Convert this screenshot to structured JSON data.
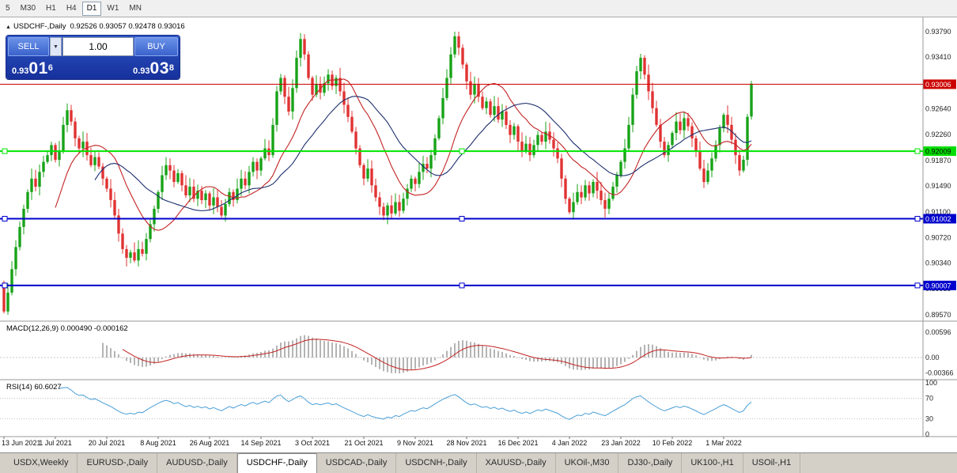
{
  "window": {
    "toolbar_timeframes": [
      "5",
      "M30",
      "H1",
      "H4",
      "D1",
      "W1",
      "MN"
    ],
    "active_timeframe": "D1"
  },
  "chart": {
    "symbol_label": "USDCHF-,Daily",
    "ohlc_values": "0.92526 0.93057 0.92478 0.93016",
    "collapse_icon": "▲"
  },
  "trade_panel": {
    "sell_label": "SELL",
    "buy_label": "BUY",
    "volume": "1.00",
    "dropdown_icon": "▼",
    "sell_price": {
      "prefix": "0.93",
      "big": "01",
      "sup": "6"
    },
    "buy_price": {
      "prefix": "0.93",
      "big": "03",
      "sup": "8"
    }
  },
  "price_axis": {
    "ticks": [
      "0.93790",
      "0.93410",
      "0.92640",
      "0.92260",
      "0.91870",
      "0.91490",
      "0.91100",
      "0.90720",
      "0.90340",
      "0.89959",
      "0.89570"
    ],
    "badges": [
      {
        "value": "0.93006",
        "price": 0.93006,
        "color": "#cc0000",
        "text_color": "#ffffff"
      },
      {
        "value": "0.92009",
        "price": 0.92009,
        "color": "#00dd00",
        "text_color": "#000000"
      },
      {
        "value": "0.91002",
        "price": 0.91002,
        "color": "#0000cc",
        "text_color": "#ffffff"
      },
      {
        "value": "0.90007",
        "price": 0.90007,
        "color": "#0000cc",
        "text_color": "#ffffff"
      }
    ]
  },
  "hlines": [
    {
      "price": 0.93006,
      "color": "#cc0000",
      "width": 1,
      "handles": false
    },
    {
      "price": 0.92009,
      "color": "#00e400",
      "width": 2,
      "handles": true
    },
    {
      "price": 0.91002,
      "color": "#0000cc",
      "width": 2,
      "handles": true
    },
    {
      "price": 0.90007,
      "color": "#0000cc",
      "width": 2,
      "handles": true
    }
  ],
  "macd": {
    "label": "MACD(12,26,9) 0.000490 -0.000162",
    "axis": [
      "0.00596",
      "0.00",
      "-0.00366"
    ],
    "fast": 12,
    "slow": 26,
    "signal": 9
  },
  "rsi": {
    "label": "RSI(14) 60.6027",
    "axis": [
      "100",
      "70",
      "30",
      "0"
    ],
    "period": 14,
    "levels": [
      70,
      30
    ]
  },
  "date_axis": [
    "13 Jun 2021",
    "1 Jul 2021",
    "20 Jul 2021",
    "8 Aug 2021",
    "26 Aug 2021",
    "14 Sep 2021",
    "3 Oct 2021",
    "21 Oct 2021",
    "9 Nov 2021",
    "28 Nov 2021",
    "16 Dec 2021",
    "4 Jan 2022",
    "23 Jan 2022",
    "10 Feb 2022",
    "1 Mar 2022"
  ],
  "tabs": {
    "items": [
      "USDX,Weekly",
      "EURUSD-,Daily",
      "AUDUSD-,Daily",
      "USDCHF-,Daily",
      "USDCAD-,Daily",
      "USDCNH-,Daily",
      "XAUUSD-,Daily",
      "UKOil-,M30",
      "DJ30-,Daily",
      "UK100-,H1",
      "USOil-,H1"
    ],
    "active": "USDCHF-,Daily"
  },
  "chart_data": {
    "type": "candlestick",
    "symbol": "USDCHF",
    "timeframe": "Daily",
    "price_range": [
      0.8957,
      0.9379
    ],
    "first_open": 0.9005,
    "closes": [
      0.8962,
      0.899,
      0.9025,
      0.9058,
      0.9088,
      0.9115,
      0.914,
      0.916,
      0.9148,
      0.917,
      0.9185,
      0.9195,
      0.921,
      0.9188,
      0.9202,
      0.924,
      0.9262,
      0.9245,
      0.922,
      0.9205,
      0.9215,
      0.9195,
      0.918,
      0.9192,
      0.9178,
      0.916,
      0.9145,
      0.9128,
      0.9105,
      0.9078,
      0.9055,
      0.9042,
      0.905,
      0.9038,
      0.9055,
      0.9048,
      0.907,
      0.9092,
      0.9115,
      0.914,
      0.9165,
      0.918,
      0.9172,
      0.9155,
      0.9168,
      0.915,
      0.9135,
      0.9148,
      0.913,
      0.9142,
      0.9128,
      0.9138,
      0.912,
      0.9132,
      0.9118,
      0.9105,
      0.9122,
      0.914,
      0.9128,
      0.9145,
      0.916,
      0.915,
      0.917,
      0.9185,
      0.9172,
      0.919,
      0.9205,
      0.9195,
      0.924,
      0.929,
      0.931,
      0.9282,
      0.926,
      0.9295,
      0.934,
      0.9368,
      0.9345,
      0.931,
      0.9285,
      0.93,
      0.9288,
      0.9302,
      0.9315,
      0.9298,
      0.931,
      0.929,
      0.927,
      0.9252,
      0.923,
      0.9205,
      0.918,
      0.916,
      0.9175,
      0.915,
      0.9132,
      0.9118,
      0.9105,
      0.912,
      0.9108,
      0.9125,
      0.9112,
      0.913,
      0.9145,
      0.916,
      0.9152,
      0.917,
      0.9182,
      0.9175,
      0.9195,
      0.922,
      0.925,
      0.928,
      0.931,
      0.9345,
      0.9372,
      0.9355,
      0.933,
      0.9305,
      0.9285,
      0.93,
      0.9282,
      0.9265,
      0.9275,
      0.9255,
      0.9268,
      0.9248,
      0.926,
      0.924,
      0.9225,
      0.9238,
      0.9215,
      0.92,
      0.9212,
      0.9195,
      0.921,
      0.9225,
      0.9215,
      0.923,
      0.9218,
      0.9205,
      0.919,
      0.916,
      0.913,
      0.911,
      0.9125,
      0.914,
      0.9132,
      0.915,
      0.9138,
      0.9155,
      0.9142,
      0.9128,
      0.9115,
      0.913,
      0.9148,
      0.9165,
      0.9185,
      0.9205,
      0.924,
      0.9285,
      0.932,
      0.934,
      0.9315,
      0.929,
      0.9265,
      0.924,
      0.9215,
      0.9195,
      0.921,
      0.9228,
      0.9245,
      0.9232,
      0.925,
      0.9238,
      0.922,
      0.92,
      0.9175,
      0.9155,
      0.9172,
      0.919,
      0.921,
      0.9235,
      0.9255,
      0.924,
      0.9218,
      0.9195,
      0.9172,
      0.9188,
      0.9252,
      0.93016
    ],
    "last_candle": {
      "open": 0.92526,
      "high": 0.93057,
      "low": 0.92478,
      "close": 0.93016
    },
    "ma_fast_period": 14,
    "ma_slow_period": 24,
    "colors": {
      "up": "#18a318",
      "down": "#e03232",
      "ma_fast": "#c32222",
      "ma_slow": "#1c2f6e",
      "macd_hist": "#b4b4b4",
      "macd_signal": "#c32222",
      "rsi": "#4a9fd8"
    }
  }
}
